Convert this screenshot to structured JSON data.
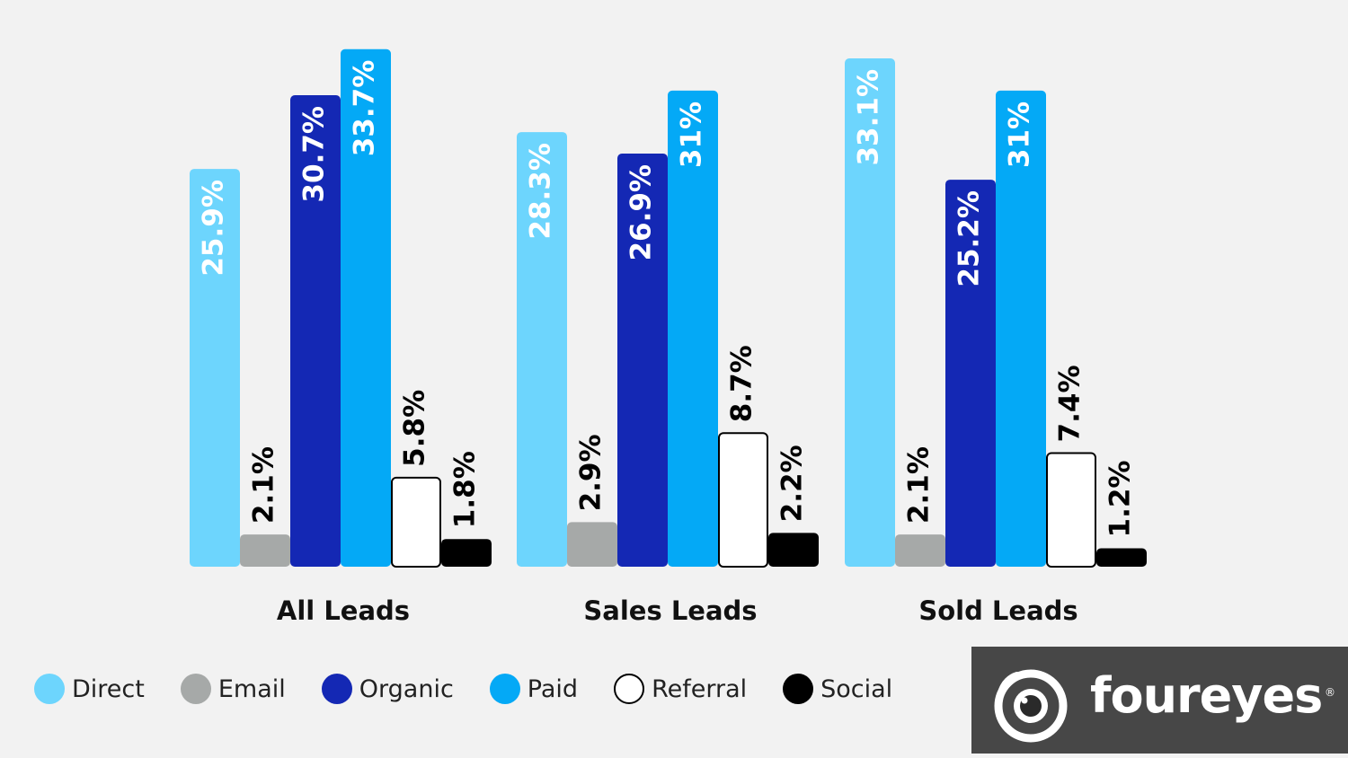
{
  "chart_data": {
    "type": "bar",
    "categories": [
      "All Leads",
      "Sales Leads",
      "Sold Leads"
    ],
    "series": [
      {
        "name": "Direct",
        "color": "#6dd5fd",
        "label_color": "#ffffff",
        "values": [
          25.9,
          28.3,
          33.1
        ],
        "labels": [
          "25.9%",
          "28.3%",
          "33.1%"
        ]
      },
      {
        "name": "Email",
        "color": "#a6a9a8",
        "label_color": "#000000",
        "values": [
          2.1,
          2.9,
          2.1
        ],
        "labels": [
          "2.1%",
          "2.9%",
          "2.1%"
        ]
      },
      {
        "name": "Organic",
        "color": "#1428b4",
        "label_color": "#ffffff",
        "values": [
          30.7,
          26.9,
          25.2
        ],
        "labels": [
          "30.7%",
          "26.9%",
          "25.2%"
        ]
      },
      {
        "name": "Paid",
        "color": "#04a9f6",
        "label_color": "#ffffff",
        "values": [
          33.7,
          31,
          31
        ],
        "labels": [
          "33.7%",
          "31%",
          "31%"
        ]
      },
      {
        "name": "Referral",
        "color": "#ffffff",
        "label_color": "#000000",
        "values": [
          5.8,
          8.7,
          7.4
        ],
        "labels": [
          "5.8%",
          "8.7%",
          "7.4%"
        ]
      },
      {
        "name": "Social",
        "color": "#000000",
        "label_color": "#000000",
        "values": [
          1.8,
          2.2,
          1.2
        ],
        "labels": [
          "1.8%",
          "2.2%",
          "1.2%"
        ]
      }
    ],
    "ylim": [
      0,
      34
    ],
    "grid": false,
    "legend_placement": "bottom-left"
  },
  "legend": {
    "items": [
      {
        "label": "Direct",
        "color": "#6dd5fd"
      },
      {
        "label": "Email",
        "color": "#a6a9a8"
      },
      {
        "label": "Organic",
        "color": "#1428b4"
      },
      {
        "label": "Paid",
        "color": "#04a9f6"
      },
      {
        "label": "Referral",
        "color": "#ffffff"
      },
      {
        "label": "Social",
        "color": "#000000"
      }
    ]
  },
  "logo": {
    "text": "foureyes",
    "registered": "®",
    "icon": "eye-icon"
  }
}
